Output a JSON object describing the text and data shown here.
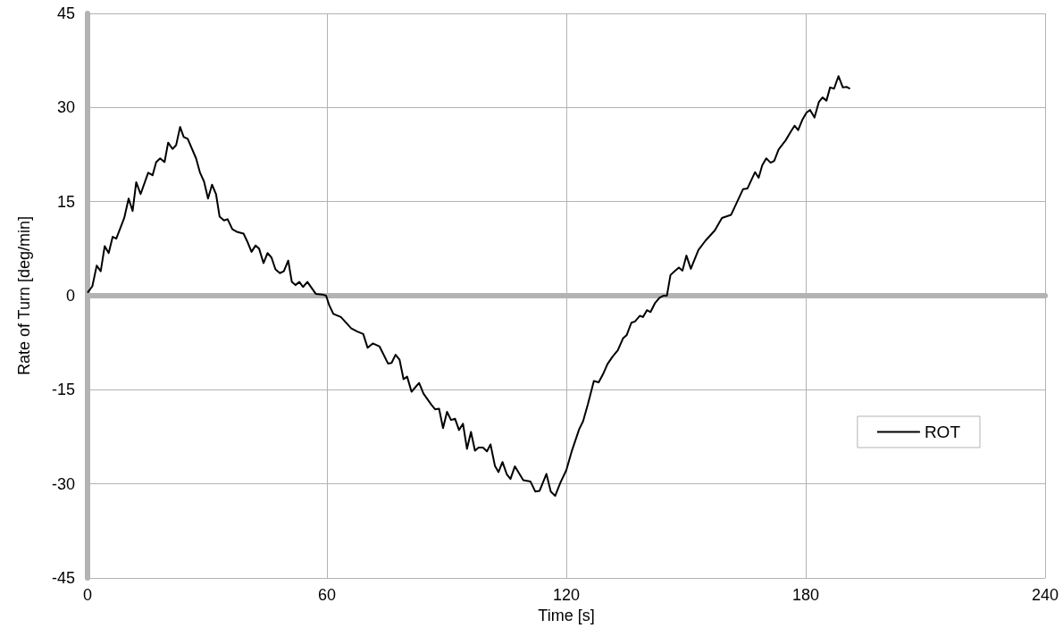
{
  "chart_data": {
    "type": "line",
    "xlabel": "Time [s]",
    "ylabel": "Rate of Turn [deg/min]",
    "xlim": [
      0,
      240
    ],
    "xticks": [
      0,
      60,
      120,
      180,
      240
    ],
    "ylim": [
      -45,
      45
    ],
    "yticks": [
      -45,
      -30,
      -15,
      0,
      15,
      30,
      45
    ],
    "grid": true,
    "legend": "right",
    "marker": "none",
    "line_style": "solid",
    "series": [
      {
        "name": "ROT",
        "color": "#000000",
        "x": [
          0,
          1.2,
          2.3,
          3.3,
          4.3,
          5.3,
          6.3,
          7.2,
          9.2,
          10.3,
          11.3,
          12.2,
          13.3,
          15.2,
          16.3,
          17.2,
          18.2,
          19.3,
          20.2,
          21.3,
          22.2,
          23.2,
          24.1,
          25.1,
          27.2,
          28.2,
          29.2,
          30.2,
          31.2,
          32.2,
          33.1,
          34.2,
          35.1,
          36.3,
          37.4,
          39.1,
          40.0,
          41.1,
          42.1,
          43.0,
          44.1,
          45.1,
          46.1,
          47.1,
          48.2,
          49.2,
          50.3,
          51.2,
          52.1,
          53.1,
          54.0,
          55.1,
          57.2,
          58.8,
          59.8,
          60.5,
          61.6,
          63.5,
          66.1,
          67.6,
          69.1,
          70.2,
          71.5,
          73.2,
          75.3,
          76.2,
          77.2,
          78.2,
          79.2,
          80.1,
          81.2,
          83.1,
          84.2,
          86.1,
          87.1,
          88.1,
          89.1,
          90.1,
          91.1,
          92.1,
          93.1,
          94.1,
          95.1,
          96.1,
          97.1,
          98.0,
          99.1,
          100.1,
          101.0,
          102.1,
          103.0,
          104.0,
          105.1,
          106.0,
          107.1,
          109.2,
          111.0,
          112.2,
          113.3,
          115.0,
          116.1,
          117.2,
          118.5,
          120.0,
          121.3,
          123.2,
          124.2,
          125.4,
          126.9,
          128.1,
          129.2,
          130.3,
          131.6,
          132.9,
          134.2,
          135.1,
          136.3,
          137.2,
          138.4,
          139.2,
          140.2,
          141.1,
          142.2,
          143.4,
          144.3,
          145.2,
          146.1,
          147.1,
          148.2,
          149.1,
          150.1,
          151.2,
          153.1,
          154.9,
          157.2,
          159.0,
          161.3,
          164.3,
          165.4,
          167.3,
          168.2,
          169.1,
          170.1,
          171.2,
          172.1,
          173.2,
          175.0,
          176.2,
          177.2,
          178.1,
          179.2,
          180.2,
          181.1,
          182.2,
          183.3,
          184.2,
          185.2,
          186.1,
          187.1,
          188.2,
          189.3,
          190.2,
          191.1
        ],
        "values": [
          0.5,
          1.5,
          4.8,
          3.9,
          7.9,
          6.8,
          9.4,
          9.1,
          12.4,
          15.5,
          13.5,
          18.1,
          16.2,
          19.6,
          19.2,
          21.3,
          21.9,
          21.3,
          24.4,
          23.4,
          24.0,
          26.9,
          25.3,
          25.0,
          21.9,
          19.6,
          18.2,
          15.5,
          17.7,
          16.2,
          12.6,
          12.0,
          12.2,
          10.6,
          10.2,
          9.9,
          8.7,
          7.0,
          8.0,
          7.5,
          5.2,
          6.8,
          6.1,
          4.2,
          3.6,
          3.9,
          5.6,
          2.2,
          1.7,
          2.2,
          1.4,
          2.2,
          0.3,
          0.2,
          0.0,
          -1.4,
          -2.9,
          -3.4,
          -5.2,
          -5.7,
          -6.1,
          -8.3,
          -7.6,
          -8.1,
          -10.8,
          -10.7,
          -9.4,
          -10.2,
          -13.3,
          -12.9,
          -15.3,
          -13.9,
          -15.6,
          -17.3,
          -18.1,
          -18.0,
          -21.1,
          -18.5,
          -19.8,
          -19.6,
          -21.4,
          -20.4,
          -24.4,
          -21.7,
          -24.7,
          -24.2,
          -24.2,
          -24.8,
          -23.7,
          -27.1,
          -28.1,
          -26.5,
          -28.5,
          -29.2,
          -27.2,
          -29.4,
          -29.6,
          -31.2,
          -31.1,
          -28.4,
          -31.2,
          -31.9,
          -29.8,
          -27.8,
          -24.9,
          -21.3,
          -20.0,
          -17.3,
          -13.6,
          -13.8,
          -12.5,
          -10.9,
          -9.7,
          -8.7,
          -6.8,
          -6.3,
          -4.3,
          -4.1,
          -3.2,
          -3.4,
          -2.3,
          -2.6,
          -1.2,
          -0.3,
          0.0,
          0.0,
          3.3,
          3.9,
          4.5,
          4.0,
          6.4,
          4.3,
          7.3,
          8.8,
          10.4,
          12.4,
          12.9,
          17.0,
          17.1,
          19.7,
          18.8,
          20.8,
          21.9,
          21.2,
          21.5,
          23.3,
          24.8,
          26.1,
          27.1,
          26.4,
          28.1,
          29.2,
          29.6,
          28.4,
          30.9,
          31.6,
          31.1,
          33.2,
          33.0,
          35.0,
          33.2,
          33.3,
          33.0
        ]
      }
    ]
  }
}
